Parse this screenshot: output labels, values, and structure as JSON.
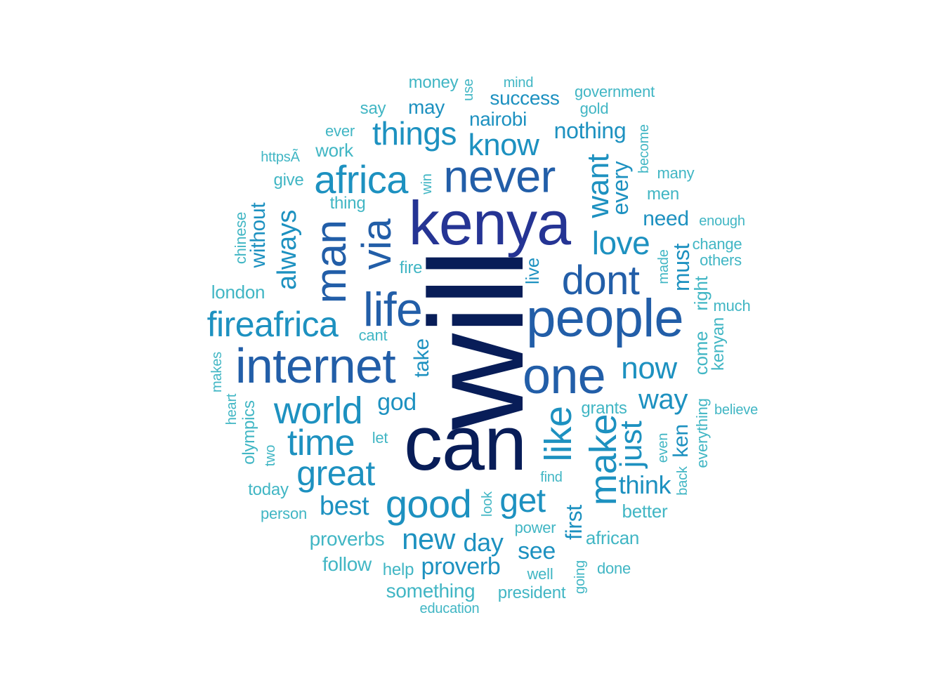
{
  "colors": {
    "c1": "#081d58",
    "c2": "#253494",
    "c3": "#225ea8",
    "c4": "#1d91c0",
    "c5": "#41b6c4"
  },
  "words": [
    {
      "text": "will",
      "color": "c1",
      "vertical": true
    },
    {
      "text": "can",
      "color": "c1",
      "vertical": false
    },
    {
      "text": "kenya",
      "color": "c2",
      "vertical": false
    },
    {
      "text": "people",
      "color": "c3",
      "vertical": false
    },
    {
      "text": "one",
      "color": "c3",
      "vertical": false
    },
    {
      "text": "internet",
      "color": "c3",
      "vertical": false
    },
    {
      "text": "never",
      "color": "c3",
      "vertical": false
    },
    {
      "text": "life",
      "color": "c3",
      "vertical": false
    },
    {
      "text": "dont",
      "color": "c3",
      "vertical": false
    },
    {
      "text": "man",
      "color": "c3",
      "vertical": true
    },
    {
      "text": "via",
      "color": "c3",
      "vertical": true
    },
    {
      "text": "africa",
      "color": "c4",
      "vertical": false
    },
    {
      "text": "fireafrica",
      "color": "c4",
      "vertical": false
    },
    {
      "text": "world",
      "color": "c4",
      "vertical": false
    },
    {
      "text": "good",
      "color": "c4",
      "vertical": false
    },
    {
      "text": "time",
      "color": "c4",
      "vertical": false
    },
    {
      "text": "great",
      "color": "c4",
      "vertical": false
    },
    {
      "text": "like",
      "color": "c4",
      "vertical": true
    },
    {
      "text": "make",
      "color": "c4",
      "vertical": true
    },
    {
      "text": "things",
      "color": "c4",
      "vertical": false
    },
    {
      "text": "know",
      "color": "c4",
      "vertical": false
    },
    {
      "text": "love",
      "color": "c4",
      "vertical": false
    },
    {
      "text": "now",
      "color": "c4",
      "vertical": false
    },
    {
      "text": "get",
      "color": "c4",
      "vertical": false
    },
    {
      "text": "new",
      "color": "c4",
      "vertical": false
    },
    {
      "text": "best",
      "color": "c4",
      "vertical": false
    },
    {
      "text": "way",
      "color": "c4",
      "vertical": false
    },
    {
      "text": "just",
      "color": "c4",
      "vertical": true
    },
    {
      "text": "want",
      "color": "c4",
      "vertical": true
    },
    {
      "text": "always",
      "color": "c4",
      "vertical": true
    },
    {
      "text": "day",
      "color": "c4",
      "vertical": false
    },
    {
      "text": "proverb",
      "color": "c4",
      "vertical": false
    },
    {
      "text": "think",
      "color": "c4",
      "vertical": false
    },
    {
      "text": "god",
      "color": "c4",
      "vertical": false
    },
    {
      "text": "see",
      "color": "c4",
      "vertical": false
    },
    {
      "text": "nothing",
      "color": "c4",
      "vertical": false
    },
    {
      "text": "first",
      "color": "c4",
      "vertical": true
    },
    {
      "text": "every",
      "color": "c4",
      "vertical": true
    },
    {
      "text": "must",
      "color": "c4",
      "vertical": true
    },
    {
      "text": "without",
      "color": "c4",
      "vertical": true
    },
    {
      "text": "need",
      "color": "c4",
      "vertical": false
    },
    {
      "text": "nairobi",
      "color": "c4",
      "vertical": false
    },
    {
      "text": "take",
      "color": "c4",
      "vertical": true
    },
    {
      "text": "ken",
      "color": "c4",
      "vertical": true
    },
    {
      "text": "success",
      "color": "c4",
      "vertical": false
    },
    {
      "text": "may",
      "color": "c4",
      "vertical": false
    },
    {
      "text": "live",
      "color": "c4",
      "vertical": true
    },
    {
      "text": "proverbs",
      "color": "c5",
      "vertical": false
    },
    {
      "text": "something",
      "color": "c5",
      "vertical": false
    },
    {
      "text": "follow",
      "color": "c5",
      "vertical": false
    },
    {
      "text": "african",
      "color": "c5",
      "vertical": false
    },
    {
      "text": "better",
      "color": "c5",
      "vertical": false
    },
    {
      "text": "come",
      "color": "c5",
      "vertical": true
    },
    {
      "text": "right",
      "color": "c5",
      "vertical": true
    },
    {
      "text": "london",
      "color": "c5",
      "vertical": false
    },
    {
      "text": "work",
      "color": "c5",
      "vertical": false
    },
    {
      "text": "grants",
      "color": "c5",
      "vertical": false
    },
    {
      "text": "money",
      "color": "c5",
      "vertical": false
    },
    {
      "text": "olympics",
      "color": "c5",
      "vertical": true
    },
    {
      "text": "president",
      "color": "c5",
      "vertical": false
    },
    {
      "text": "men",
      "color": "c5",
      "vertical": false
    },
    {
      "text": "give",
      "color": "c5",
      "vertical": false
    },
    {
      "text": "fire",
      "color": "c5",
      "vertical": false
    },
    {
      "text": "today",
      "color": "c5",
      "vertical": false
    },
    {
      "text": "say",
      "color": "c5",
      "vertical": false
    },
    {
      "text": "kenyan",
      "color": "c5",
      "vertical": true
    },
    {
      "text": "everything",
      "color": "c5",
      "vertical": true
    },
    {
      "text": "thing",
      "color": "c5",
      "vertical": false
    },
    {
      "text": "chinese",
      "color": "c5",
      "vertical": true
    },
    {
      "text": "help",
      "color": "c5",
      "vertical": false
    },
    {
      "text": "power",
      "color": "c5",
      "vertical": false
    },
    {
      "text": "well",
      "color": "c5",
      "vertical": false
    },
    {
      "text": "person",
      "color": "c5",
      "vertical": false
    },
    {
      "text": "government",
      "color": "c5",
      "vertical": false
    },
    {
      "text": "ever",
      "color": "c5",
      "vertical": false
    },
    {
      "text": "change",
      "color": "c5",
      "vertical": false
    },
    {
      "text": "much",
      "color": "c5",
      "vertical": false
    },
    {
      "text": "others",
      "color": "c5",
      "vertical": false
    },
    {
      "text": "cant",
      "color": "c5",
      "vertical": false
    },
    {
      "text": "many",
      "color": "c5",
      "vertical": false
    },
    {
      "text": "done",
      "color": "c5",
      "vertical": false
    },
    {
      "text": "gold",
      "color": "c5",
      "vertical": false
    },
    {
      "text": "let",
      "color": "c5",
      "vertical": false
    },
    {
      "text": "heart",
      "color": "c5",
      "vertical": true
    },
    {
      "text": "become",
      "color": "c5",
      "vertical": true
    },
    {
      "text": "makes",
      "color": "c5",
      "vertical": true
    },
    {
      "text": "back",
      "color": "c5",
      "vertical": true
    },
    {
      "text": "education",
      "color": "c5",
      "vertical": false
    },
    {
      "text": "believe",
      "color": "c5",
      "vertical": false
    },
    {
      "text": "enough",
      "color": "c5",
      "vertical": false
    },
    {
      "text": "mind",
      "color": "c5",
      "vertical": false
    },
    {
      "text": "httpsÃ",
      "color": "c5",
      "vertical": false
    },
    {
      "text": "find",
      "color": "c5",
      "vertical": false
    },
    {
      "text": "going",
      "color": "c5",
      "vertical": true
    },
    {
      "text": "even",
      "color": "c5",
      "vertical": true
    },
    {
      "text": "two",
      "color": "c5",
      "vertical": true
    },
    {
      "text": "look",
      "color": "c5",
      "vertical": true
    },
    {
      "text": "use",
      "color": "c5",
      "vertical": true
    },
    {
      "text": "win",
      "color": "c5",
      "vertical": true
    },
    {
      "text": "made",
      "color": "c5",
      "vertical": true
    }
  ]
}
